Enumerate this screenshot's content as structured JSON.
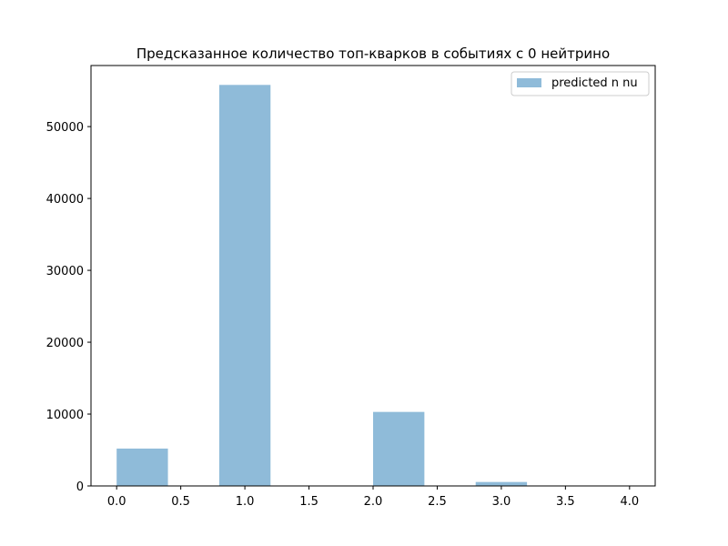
{
  "chart_data": {
    "type": "bar",
    "title": "Предсказанное количество топ-кварков в событиях с 0 нейтрино",
    "xlabel": "",
    "ylabel": "",
    "xlim": [
      -0.2,
      4.2
    ],
    "ylim": [
      0,
      58500
    ],
    "x_ticks": [
      0.0,
      0.5,
      1.0,
      1.5,
      2.0,
      2.5,
      3.0,
      3.5,
      4.0
    ],
    "x_tick_labels": [
      "0.0",
      "0.5",
      "1.0",
      "1.5",
      "2.0",
      "2.5",
      "3.0",
      "3.5",
      "4.0"
    ],
    "y_ticks": [
      0,
      10000,
      20000,
      30000,
      40000,
      50000
    ],
    "y_tick_labels": [
      "0",
      "10000",
      "20000",
      "30000",
      "40000",
      "50000"
    ],
    "grid": false,
    "legend": {
      "position": "upper right",
      "entries": [
        "predicted n nu"
      ]
    },
    "series": [
      {
        "name": "predicted n nu",
        "color": "#1f77b4",
        "alpha": 0.5,
        "bins": [
          {
            "x0": 0.0,
            "x1": 0.4,
            "value": 5200
          },
          {
            "x0": 0.4,
            "x1": 0.8,
            "value": 0
          },
          {
            "x0": 0.8,
            "x1": 1.2,
            "value": 55800
          },
          {
            "x0": 1.2,
            "x1": 1.6,
            "value": 0
          },
          {
            "x0": 1.6,
            "x1": 2.0,
            "value": 0
          },
          {
            "x0": 2.0,
            "x1": 2.4,
            "value": 10300
          },
          {
            "x0": 2.4,
            "x1": 2.8,
            "value": 0
          },
          {
            "x0": 2.8,
            "x1": 3.2,
            "value": 550
          },
          {
            "x0": 3.2,
            "x1": 3.6,
            "value": 0
          },
          {
            "x0": 3.6,
            "x1": 4.0,
            "value": 0
          }
        ]
      }
    ]
  }
}
